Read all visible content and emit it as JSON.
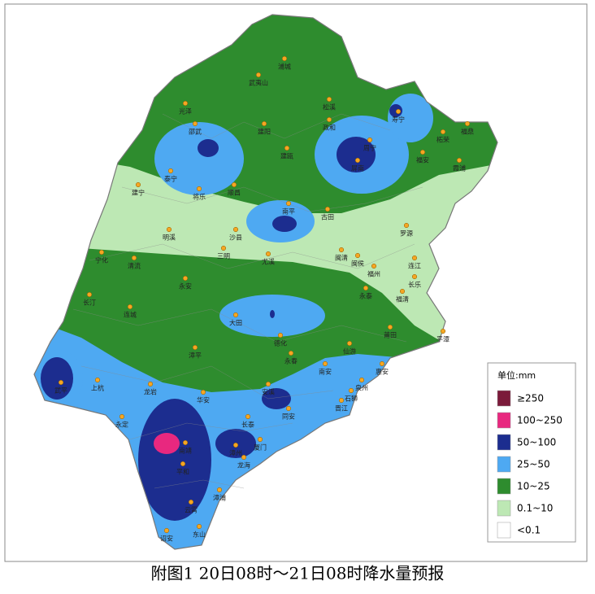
{
  "map": {
    "cities": [
      "浦城",
      "武夷山",
      "光泽",
      "松溪",
      "政和",
      "寿宁",
      "福鼎",
      "建阳",
      "邵武",
      "柘荣",
      "周宁",
      "福安",
      "建瓯",
      "屏南",
      "霞浦",
      "泰宁",
      "顺昌",
      "南平",
      "古田",
      "建宁",
      "将乐",
      "明溪",
      "沙县",
      "闽清",
      "罗源",
      "连江",
      "福州",
      "闽侯",
      "三明",
      "尤溪",
      "宁化",
      "清流",
      "长乐",
      "永安",
      "永泰",
      "福清",
      "长汀",
      "连城",
      "大田",
      "德化",
      "仙游",
      "莆田",
      "平潭",
      "漳平",
      "永春",
      "安溪",
      "南安",
      "泉州",
      "惠安",
      "上杭",
      "武平",
      "龙岩",
      "晋江",
      "石狮",
      "华安",
      "永定",
      "同安",
      "长泰",
      "南靖",
      "平和",
      "漳州",
      "厦门",
      "龙海",
      "漳浦",
      "云霄",
      "诏安",
      "东山"
    ]
  },
  "legend": {
    "title": "单位:mm",
    "items": [
      {
        "label": "≥250",
        "color": "#7b1a3a"
      },
      {
        "label": "100~250",
        "color": "#e8287f"
      },
      {
        "label": "50~100",
        "color": "#1c2d8f"
      },
      {
        "label": "25~50",
        "color": "#4ea9f2"
      },
      {
        "label": "10~25",
        "color": "#2e8c2e"
      },
      {
        "label": "0.1~10",
        "color": "#bde8b4"
      },
      {
        "label": "<0.1",
        "color": "#ffffff"
      }
    ]
  },
  "caption": "附图1 20日08时～21日08时降水量预报"
}
